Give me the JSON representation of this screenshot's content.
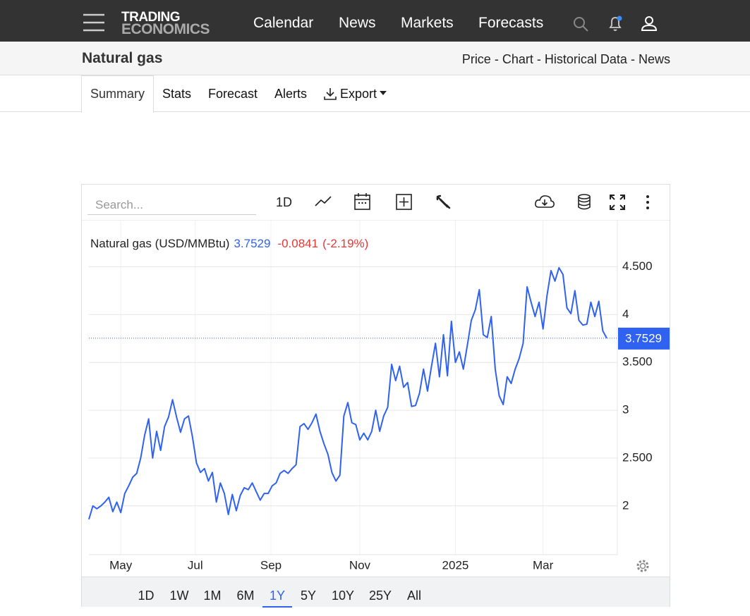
{
  "nav": {
    "logo": [
      "TRADING",
      "ECONOMICS"
    ],
    "links": [
      "Calendar",
      "News",
      "Markets",
      "Forecasts"
    ]
  },
  "header": {
    "title": "Natural gas",
    "links": [
      "Price",
      "Chart",
      "Historical Data",
      "News"
    ],
    "separator": "-"
  },
  "tabs": [
    "Summary",
    "Stats",
    "Forecast",
    "Alerts",
    "Export"
  ],
  "active_tab": 0,
  "toolbar": {
    "search_placeholder": "Search...",
    "interval": "1D"
  },
  "ranges": [
    "1D",
    "1W",
    "1M",
    "6M",
    "1Y",
    "5Y",
    "10Y",
    "25Y",
    "All"
  ],
  "active_range": 4,
  "chart_data": {
    "type": "line",
    "series": [
      {
        "name": "Natural gas (USD/MMBtu)",
        "color": "#2f62f0",
        "values": [
          1.86,
          2.0,
          1.97,
          2.0,
          2.04,
          2.09,
          1.94,
          2.04,
          1.93,
          2.13,
          2.21,
          2.3,
          2.34,
          2.5,
          2.74,
          2.91,
          2.5,
          2.78,
          2.58,
          2.83,
          2.93,
          3.11,
          2.93,
          2.77,
          2.91,
          2.94,
          2.72,
          2.45,
          2.35,
          2.39,
          2.26,
          2.35,
          2.04,
          2.24,
          2.13,
          1.91,
          2.12,
          1.95,
          2.11,
          2.19,
          2.17,
          2.24,
          2.15,
          2.06,
          2.13,
          2.13,
          2.21,
          2.24,
          2.34,
          2.37,
          2.34,
          2.39,
          2.43,
          2.83,
          2.86,
          2.8,
          2.87,
          2.96,
          2.78,
          2.65,
          2.54,
          2.35,
          2.26,
          2.32,
          2.94,
          3.08,
          2.87,
          2.85,
          2.69,
          2.76,
          2.69,
          2.78,
          3.0,
          2.78,
          2.94,
          3.03,
          3.48,
          3.31,
          3.46,
          3.24,
          3.29,
          3.04,
          3.05,
          3.18,
          3.43,
          3.2,
          3.46,
          3.7,
          3.35,
          3.79,
          3.36,
          3.93,
          3.5,
          3.61,
          3.43,
          3.68,
          3.94,
          4.05,
          4.26,
          3.79,
          3.76,
          3.98,
          3.43,
          3.15,
          3.06,
          3.35,
          3.28,
          3.43,
          3.54,
          3.7,
          4.29,
          4.13,
          3.98,
          4.13,
          3.85,
          4.2,
          4.46,
          4.35,
          4.49,
          4.42,
          4.07,
          4.01,
          4.25,
          3.94,
          3.89,
          3.9,
          4.13,
          3.98,
          4.14,
          3.83,
          3.7529
        ]
      }
    ],
    "change": "-0.0841",
    "change_pct": "(-2.19%)",
    "change_color": "#e53935",
    "xlim": [
      0,
      130
    ],
    "xticks": [
      {
        "value": 8,
        "label": "May"
      },
      {
        "value": 26.7,
        "label": "Jul"
      },
      {
        "value": 45.7,
        "label": "Sep"
      },
      {
        "value": 68,
        "label": "Nov"
      },
      {
        "value": 92,
        "label": "2025"
      },
      {
        "value": 114,
        "label": "Mar"
      }
    ],
    "ylim": [
      1.49,
      4.99
    ],
    "yticks": [
      2,
      {
        "value": 2.5,
        "label": "2.500"
      },
      3,
      {
        "value": 3.5,
        "label": "3.500"
      },
      4,
      {
        "value": 4.5,
        "label": "4.500"
      }
    ],
    "grid": true
  }
}
